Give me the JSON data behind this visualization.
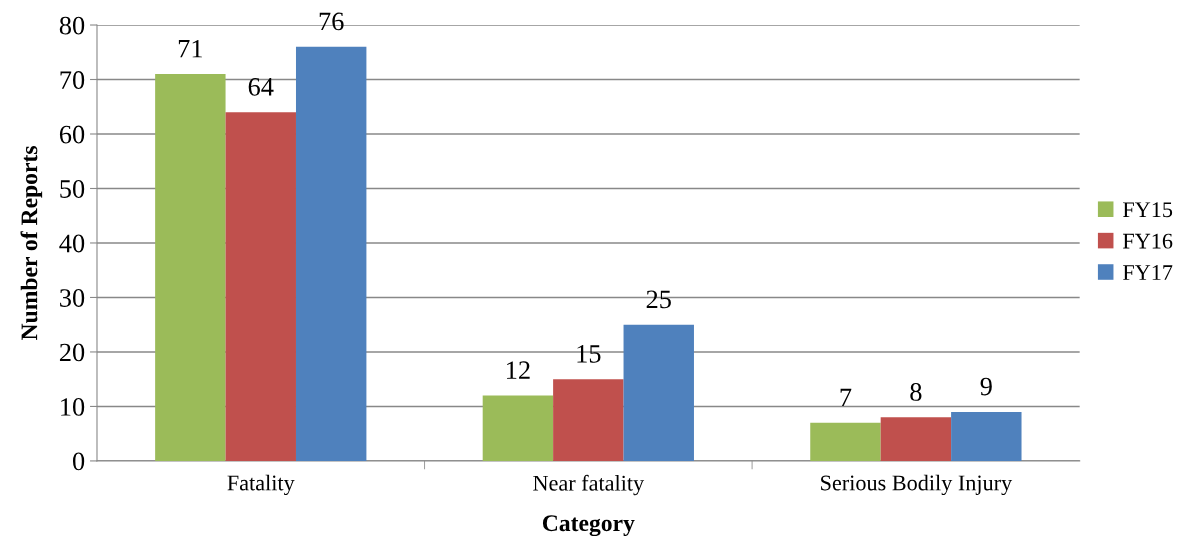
{
  "chart_data": {
    "type": "bar",
    "xlabel": "Category",
    "ylabel": "Number of Reports",
    "categories": [
      "Fatality",
      "Near fatality",
      "Serious Bodily Injury"
    ],
    "series": [
      {
        "name": "FY15",
        "color": "#9bbb59",
        "values": [
          71,
          12,
          7
        ]
      },
      {
        "name": "FY16",
        "color": "#c0504d",
        "values": [
          64,
          15,
          8
        ]
      },
      {
        "name": "FY17",
        "color": "#4f81bd",
        "values": [
          76,
          25,
          9
        ]
      }
    ],
    "ylim": [
      0,
      80
    ],
    "yticks": [
      0,
      10,
      20,
      30,
      40,
      50,
      60,
      70,
      80
    ],
    "grid": "y",
    "legend": "right",
    "data_labels": true
  }
}
